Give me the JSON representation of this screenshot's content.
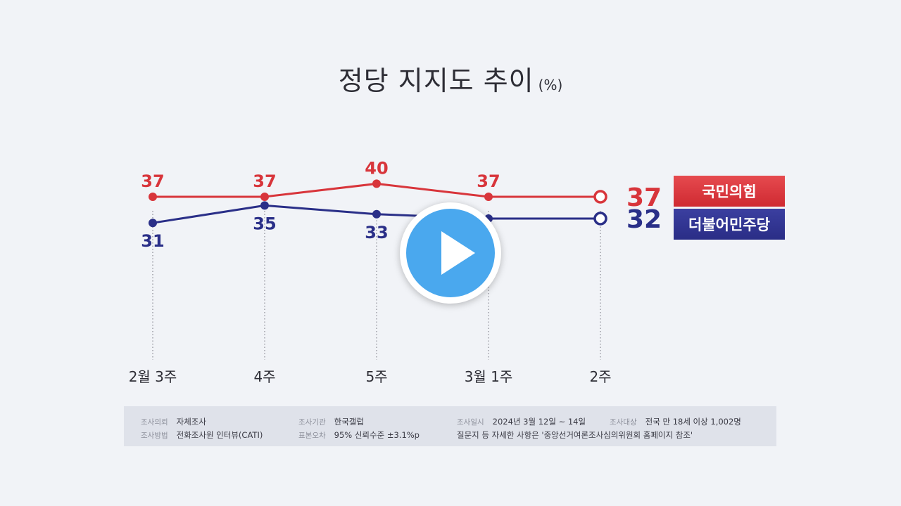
{
  "chart_data": {
    "type": "line",
    "title": "정당 지지도 추이",
    "unit": "(%)",
    "categories": [
      "2월 3주",
      "4주",
      "5주",
      "3월 1주",
      "2주"
    ],
    "series": [
      {
        "name": "국민의힘",
        "color": "#d8353b",
        "values": [
          37,
          37,
          40,
          37,
          37
        ],
        "labels": [
          "37",
          "37",
          "40",
          "37",
          "37"
        ]
      },
      {
        "name": "더불어민주당",
        "color": "#2a2f88",
        "values": [
          31,
          35,
          33,
          32,
          32
        ],
        "labels": [
          "31",
          "35",
          "33",
          "",
          "32"
        ]
      }
    ],
    "ylim": [
      28,
      42
    ],
    "grid": "dotted vertical lines at each category",
    "legend": "right"
  },
  "legend": {
    "red_label": "국민의힘",
    "blue_label": "더불어민주당"
  },
  "survey_info": {
    "client_label": "조사의뢰",
    "client_value": "자체조사",
    "method_label": "조사방법",
    "method_value": "전화조사원 인터뷰(CATI)",
    "org_label": "조사기관",
    "org_value": "한국갤럽",
    "error_label": "표본오차",
    "error_value": "95% 신뢰수준 ±3.1%p",
    "date_label": "조사일시",
    "date_value": "2024년 3월 12일 ~ 14일",
    "target_label": "조사대상",
    "target_value": "전국 만 18세 이상 1,002명",
    "note": "질문지 등 자세한 사항은 '중앙선거여론조사심의위원회 홈페이지 참조'"
  },
  "play_button": {
    "icon": "play-icon",
    "color": "#4aa8ee"
  }
}
